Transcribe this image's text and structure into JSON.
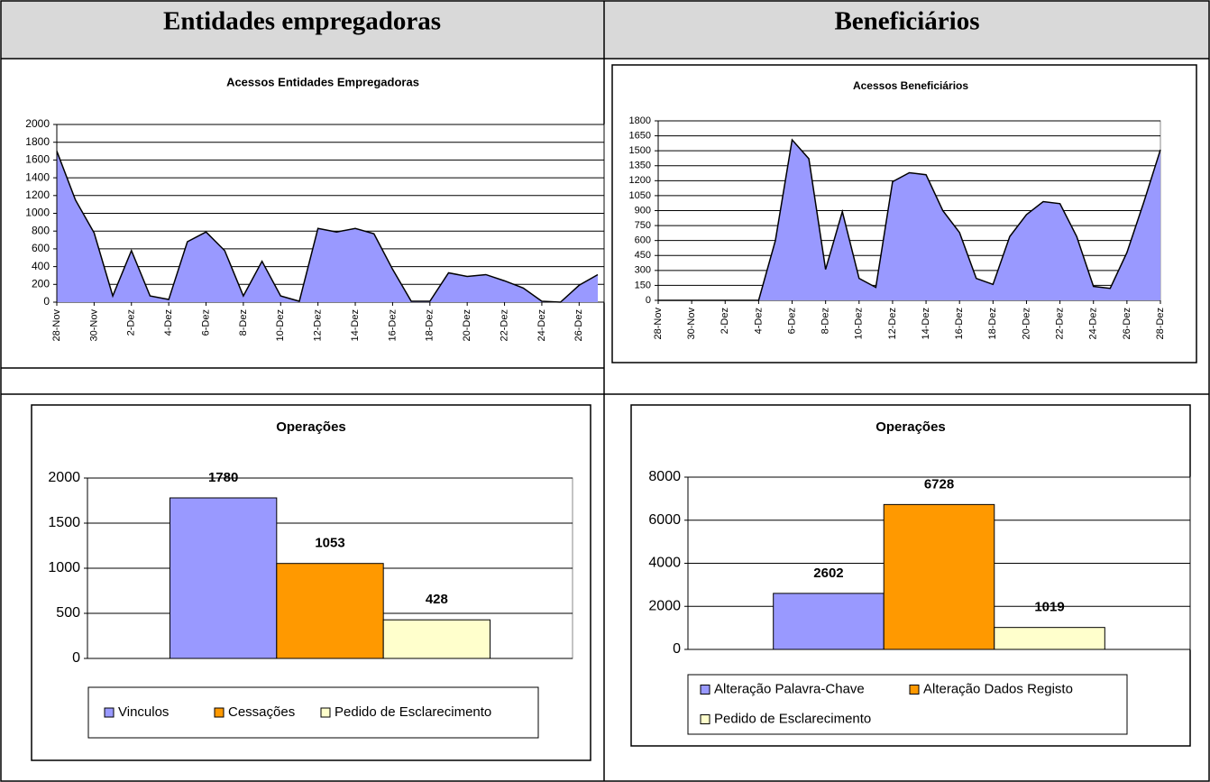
{
  "headers": [
    "Entidades empregadoras",
    "Beneficiários"
  ],
  "chart_data": [
    {
      "type": "area",
      "title": "Acessos Entidades Empregadoras",
      "color": "#9999ff",
      "categories": [
        "28-Nov",
        null,
        "30-Nov",
        null,
        "2-Dez",
        null,
        "4-Dez",
        null,
        "6-Dez",
        null,
        "8-Dez",
        null,
        "10-Dez",
        null,
        "12-Dez",
        null,
        "14-Dez",
        null,
        "16-Dez",
        null,
        "18-Dez",
        null,
        "20-Dez",
        null,
        "22-Dez",
        null,
        "24-Dez",
        null,
        "26-Dez",
        null
      ],
      "values": [
        1700,
        1150,
        780,
        70,
        580,
        70,
        30,
        680,
        790,
        580,
        70,
        460,
        70,
        10,
        830,
        790,
        830,
        770,
        370,
        10,
        10,
        330,
        290,
        310,
        240,
        160,
        10,
        0,
        190,
        310
      ],
      "ylim": [
        0,
        2000
      ],
      "yticks": [
        0,
        200,
        400,
        600,
        800,
        1000,
        1200,
        1400,
        1600,
        1800,
        2000
      ],
      "grid": true
    },
    {
      "type": "area",
      "title": "Acessos Beneficiários",
      "color": "#9999ff",
      "categories": [
        "28-Nov",
        null,
        "30-Nov",
        null,
        "2-Dez",
        null,
        "4-Dez",
        null,
        "6-Dez",
        null,
        "8-Dez",
        null,
        "10-Dez",
        null,
        "12-Dez",
        null,
        "14-Dez",
        null,
        "16-Dez",
        null,
        "18-Dez",
        null,
        "20-Dez",
        null,
        "22-Dez",
        null,
        "24-Dez",
        null,
        "26-Dez",
        null,
        "28-Dez"
      ],
      "values": [
        0,
        0,
        0,
        0,
        0,
        0,
        0,
        600,
        1610,
        1420,
        310,
        890,
        220,
        130,
        1190,
        1280,
        1260,
        900,
        680,
        220,
        160,
        640,
        860,
        990,
        970,
        640,
        140,
        120,
        480,
        980,
        1510
      ],
      "ylim": [
        0,
        1800
      ],
      "yticks": [
        0,
        150,
        300,
        450,
        600,
        750,
        900,
        1050,
        1200,
        1350,
        1500,
        1650,
        1800
      ],
      "grid": true
    },
    {
      "type": "bar",
      "title": "Operações",
      "ylim": [
        0,
        2000
      ],
      "yticks": [
        0,
        500,
        1000,
        1500,
        2000
      ],
      "grid": true,
      "legend": "bottom",
      "series": [
        {
          "name": "Vinculos",
          "color": "#9999ff",
          "values": [
            1780
          ]
        },
        {
          "name": "Cessações",
          "color": "#ff9900",
          "values": [
            1053
          ]
        },
        {
          "name": "Pedido de Esclarecimento",
          "color": "#ffffcc",
          "values": [
            428
          ]
        }
      ]
    },
    {
      "type": "bar",
      "title": "Operações",
      "ylim": [
        0,
        8000
      ],
      "yticks": [
        0,
        2000,
        4000,
        6000,
        8000
      ],
      "grid": true,
      "legend": "bottom",
      "series": [
        {
          "name": "Alteração Palavra-Chave",
          "color": "#9999ff",
          "values": [
            2602
          ]
        },
        {
          "name": "Alteração Dados Registo",
          "color": "#ff9900",
          "values": [
            6728
          ]
        },
        {
          "name": "Pedido de Esclarecimento",
          "color": "#ffffcc",
          "values": [
            1019
          ]
        }
      ]
    }
  ]
}
